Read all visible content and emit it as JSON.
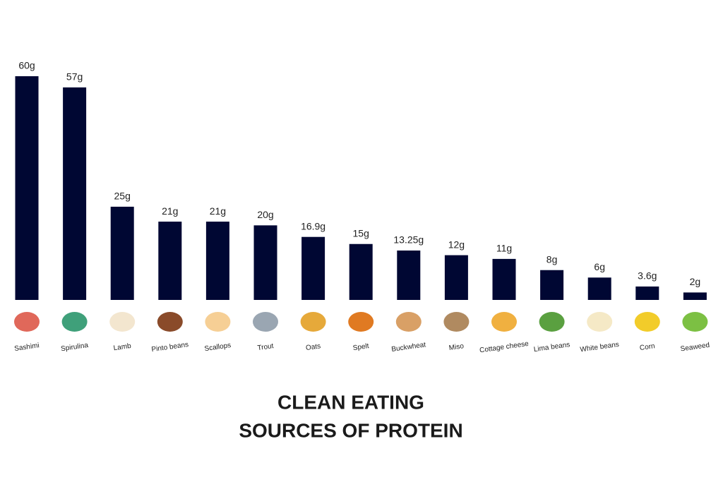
{
  "chart_data": {
    "type": "bar",
    "title": "CLEAN EATING",
    "subtitle": "SOURCES OF PROTEIN",
    "categories": [
      "Sashimi",
      "Spirulina",
      "Lamb",
      "Pinto beans",
      "Scallops",
      "Trout",
      "Oats",
      "Spelt",
      "Buckwheat",
      "Miso",
      "Cottage cheese",
      "Lima beans",
      "White beans",
      "Corn",
      "Seaweed"
    ],
    "values": [
      60,
      57,
      25,
      21,
      21,
      20,
      16.9,
      15,
      13.25,
      12,
      11,
      8,
      6,
      3.6,
      2
    ],
    "value_labels": [
      "60g",
      "57g",
      "25g",
      "21g",
      "21g",
      "20g",
      "16.9g",
      "15g",
      "13.25g",
      "12g",
      "11g",
      "8g",
      "6g",
      "3.6g",
      "2g"
    ],
    "color": "#000733"
  }
}
